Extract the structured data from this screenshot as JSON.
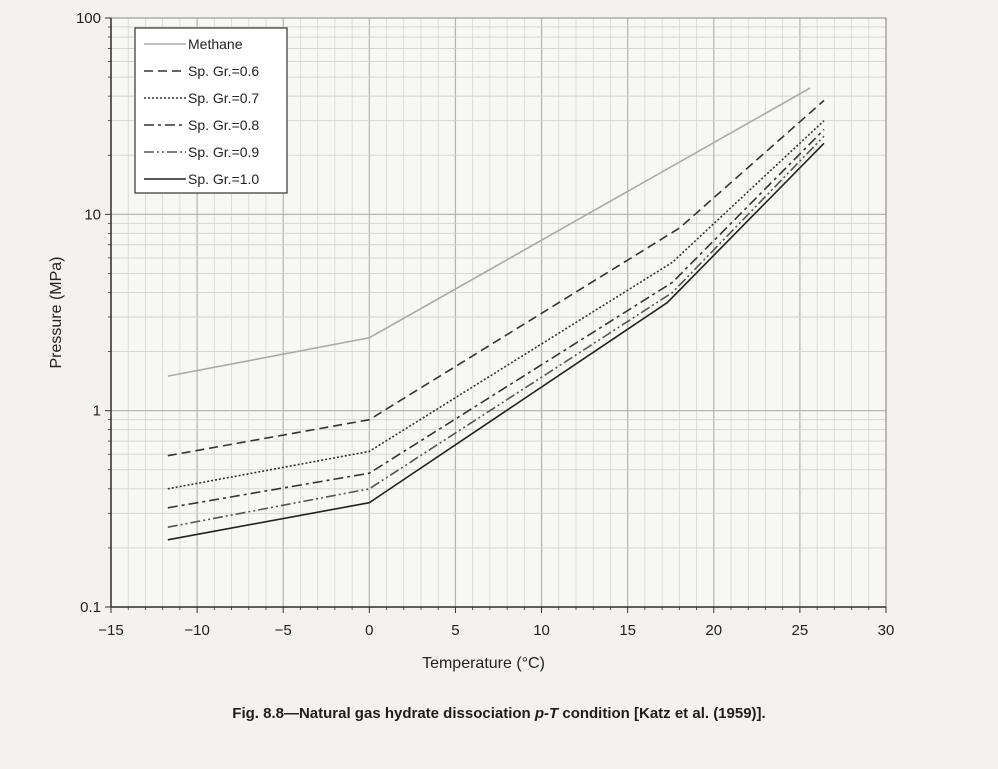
{
  "figure": {
    "caption_prefix": "Fig. 8.8—Natural gas hydrate dissociation ",
    "caption_pt": "p-T",
    "caption_suffix": " condition [Katz et al. (1959)]."
  },
  "chart_data": {
    "type": "line",
    "xlabel": "Temperature (°C)",
    "ylabel": "Pressure (MPa)",
    "xlim": [
      -15,
      30
    ],
    "ylim": [
      0.1,
      100
    ],
    "yscale": "log",
    "grid": true,
    "legend": "top-left",
    "xticks": [
      -15,
      -10,
      -5,
      0,
      5,
      10,
      15,
      20,
      25,
      30
    ],
    "xtick_labels": [
      "−15",
      "−10",
      "−5",
      "0",
      "5",
      "10",
      "15",
      "20",
      "25",
      "30"
    ],
    "yticks": [
      0.1,
      1,
      10,
      100
    ],
    "ytick_labels": [
      "0.1",
      "1",
      "10",
      "100"
    ],
    "series": [
      {
        "name": "Methane",
        "style": "solid",
        "color": "#aaaaaa",
        "x": [
          -11.7,
          0,
          25.6
        ],
        "y": [
          1.5,
          2.35,
          44
        ]
      },
      {
        "name": "Sp. Gr.=0.6",
        "style": "dashed",
        "color": "#333333",
        "x": [
          -11.7,
          0,
          18,
          26.4
        ],
        "y": [
          0.59,
          0.9,
          8.5,
          38
        ]
      },
      {
        "name": "Sp. Gr.=0.7",
        "style": "dotted",
        "color": "#333333",
        "x": [
          -11.7,
          0,
          17.6,
          26.4
        ],
        "y": [
          0.4,
          0.62,
          5.7,
          30
        ]
      },
      {
        "name": "Sp. Gr.=0.8",
        "style": "dashdot",
        "color": "#333333",
        "x": [
          -11.7,
          0,
          17.6,
          26.4
        ],
        "y": [
          0.32,
          0.48,
          4.5,
          27
        ]
      },
      {
        "name": "Sp. Gr.=0.9",
        "style": "dashdotdot",
        "color": "#555555",
        "x": [
          -11.7,
          0,
          17.6,
          26.4
        ],
        "y": [
          0.255,
          0.4,
          4.0,
          25
        ]
      },
      {
        "name": "Sp. Gr.=1.0",
        "style": "solid",
        "color": "#222222",
        "x": [
          -11.7,
          0,
          17.3,
          26.4
        ],
        "y": [
          0.22,
          0.34,
          3.55,
          23
        ]
      }
    ]
  }
}
